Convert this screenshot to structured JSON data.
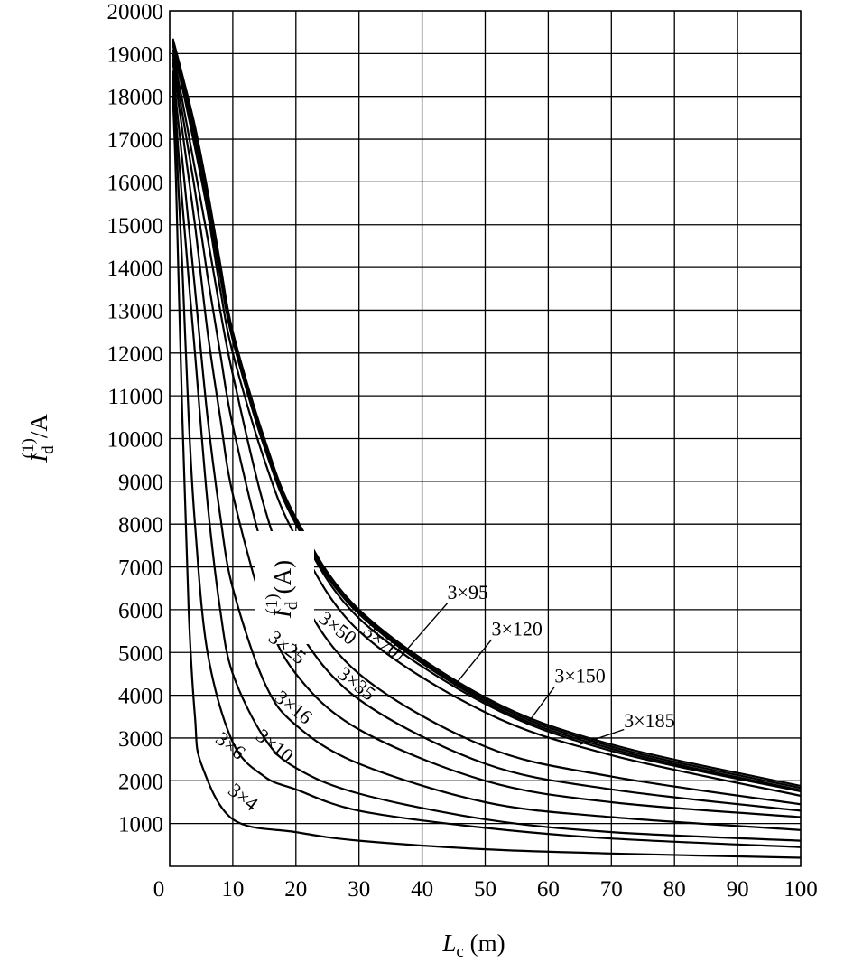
{
  "chart_data": {
    "type": "line",
    "xlabel_main": "L",
    "xlabel_sub": "c",
    "xlabel_unit": " (m)",
    "ylabel_main": "I",
    "ylabel_sub": "d",
    "ylabel_sup": "(1)",
    "ylabel_unit": "/A",
    "inset_label_main": "I",
    "inset_label_sub": "d",
    "inset_label_sup": "(1)",
    "inset_label_unit": "(A)",
    "xlim": [
      0,
      100
    ],
    "ylim": [
      0,
      20000
    ],
    "x_ticks": [
      "0",
      "10",
      "20",
      "30",
      "40",
      "50",
      "60",
      "70",
      "80",
      "90",
      "100"
    ],
    "y_ticks": [
      "1000",
      "2000",
      "3000",
      "4000",
      "5000",
      "6000",
      "7000",
      "8000",
      "9000",
      "10000",
      "11000",
      "12000",
      "13000",
      "14000",
      "15000",
      "16000",
      "17000",
      "18000",
      "19000",
      "20000"
    ],
    "grid": true,
    "series": [
      {
        "name": "3×4",
        "x": [
          0.5,
          1,
          2,
          3,
          4,
          5,
          10,
          20,
          30,
          50,
          70,
          100
        ],
        "y": [
          18000,
          16000,
          10500,
          6000,
          3500,
          2400,
          1100,
          800,
          600,
          400,
          300,
          200
        ]
      },
      {
        "name": "3×6",
        "x": [
          0.5,
          1,
          2,
          3,
          4,
          6,
          10,
          15,
          20,
          30,
          50,
          70,
          100
        ],
        "y": [
          18300,
          17000,
          14000,
          10500,
          8000,
          5000,
          2900,
          2100,
          1800,
          1300,
          900,
          650,
          450
        ]
      },
      {
        "name": "3×10",
        "x": [
          0.5,
          2,
          4,
          6,
          8,
          10,
          15,
          20,
          30,
          50,
          70,
          100
        ],
        "y": [
          18500,
          15500,
          12000,
          8500,
          6000,
          4500,
          3000,
          2300,
          1700,
          1100,
          800,
          600
        ]
      },
      {
        "name": "3×16",
        "x": [
          0.5,
          2,
          4,
          6,
          8,
          10,
          15,
          20,
          30,
          50,
          70,
          100
        ],
        "y": [
          18600,
          16500,
          13500,
          10500,
          8200,
          6500,
          4300,
          3300,
          2400,
          1500,
          1150,
          850
        ]
      },
      {
        "name": "3×25",
        "x": [
          0.5,
          2,
          4,
          6,
          8,
          10,
          15,
          20,
          30,
          50,
          70,
          100
        ],
        "y": [
          18800,
          17200,
          15000,
          12500,
          10500,
          8700,
          6000,
          4500,
          3200,
          2000,
          1500,
          1150
        ]
      },
      {
        "name": "3×35",
        "x": [
          0.5,
          2,
          4,
          6,
          8,
          10,
          15,
          20,
          30,
          50,
          70,
          100
        ],
        "y": [
          18900,
          17600,
          15800,
          13800,
          12000,
          10300,
          7300,
          5600,
          3900,
          2400,
          1800,
          1300
        ]
      },
      {
        "name": "3×50",
        "x": [
          0.5,
          2,
          4,
          6,
          8,
          10,
          15,
          20,
          30,
          50,
          70,
          100
        ],
        "y": [
          19000,
          17900,
          16300,
          14700,
          13000,
          11500,
          8400,
          6500,
          4500,
          2800,
          2100,
          1450
        ]
      },
      {
        "name": "3×70",
        "x": [
          0.5,
          2,
          4,
          6,
          8,
          10,
          15,
          20,
          30,
          50,
          70,
          100
        ],
        "y": [
          19100,
          18200,
          16800,
          15300,
          13500,
          12000,
          9500,
          7700,
          5500,
          3600,
          2600,
          1650
        ]
      },
      {
        "name": "3×95",
        "x": [
          0.5,
          2,
          4,
          6,
          8,
          10,
          15,
          20,
          30,
          50,
          70,
          100
        ],
        "y": [
          19200,
          18300,
          17000,
          15500,
          13800,
          12300,
          9800,
          8000,
          5800,
          3800,
          2700,
          1750
        ]
      },
      {
        "name": "3×120",
        "x": [
          0.5,
          2,
          4,
          6,
          8,
          10,
          15,
          20,
          30,
          50,
          70,
          100
        ],
        "y": [
          19250,
          18400,
          17100,
          15600,
          13900,
          12400,
          9900,
          8050,
          5900,
          3850,
          2750,
          1780
        ]
      },
      {
        "name": "3×150",
        "x": [
          0.5,
          2,
          4,
          6,
          8,
          10,
          15,
          20,
          30,
          50,
          70,
          100
        ],
        "y": [
          19300,
          18450,
          17200,
          15700,
          14000,
          12450,
          9950,
          8100,
          5950,
          3900,
          2800,
          1830
        ]
      },
      {
        "name": "3×185",
        "x": [
          0.5,
          2,
          4,
          6,
          8,
          10,
          15,
          20,
          30,
          50,
          70,
          100
        ],
        "y": [
          19350,
          18500,
          17300,
          15800,
          14100,
          12500,
          10000,
          8150,
          6000,
          3950,
          2850,
          1880
        ]
      }
    ],
    "curve_labels": [
      {
        "text": "3×4",
        "x": 11,
        "y": 1500,
        "rot": 38
      },
      {
        "text": "3×6",
        "x": 9,
        "y": 2700,
        "rot": 38
      },
      {
        "text": "3×10",
        "x": 16,
        "y": 2700,
        "rot": 38
      },
      {
        "text": "3×16",
        "x": 19,
        "y": 3600,
        "rot": 38
      },
      {
        "text": "3×25",
        "x": 18,
        "y": 5000,
        "rot": 38
      },
      {
        "text": "3×35",
        "x": 29,
        "y": 4150,
        "rot": 38
      },
      {
        "text": "3×50",
        "x": 26,
        "y": 5450,
        "rot": 38
      },
      {
        "text": "3×70",
        "x": 33,
        "y": 5150,
        "rot": 38
      }
    ],
    "leader_labels": [
      {
        "text": "3×95",
        "tx": 44,
        "ty": 6250,
        "x1": 44,
        "y1": 6150,
        "x2": 36,
        "y2": 4800
      },
      {
        "text": "3×120",
        "tx": 51,
        "ty": 5400,
        "x1": 51,
        "y1": 5300,
        "x2": 45,
        "y2": 4200
      },
      {
        "text": "3×150",
        "tx": 61,
        "ty": 4300,
        "x1": 61,
        "y1": 4200,
        "x2": 57,
        "y2": 3400
      },
      {
        "text": "3×185",
        "tx": 72,
        "ty": 3250,
        "x1": 72,
        "y1": 3200,
        "x2": 65,
        "y2": 2850
      }
    ]
  }
}
